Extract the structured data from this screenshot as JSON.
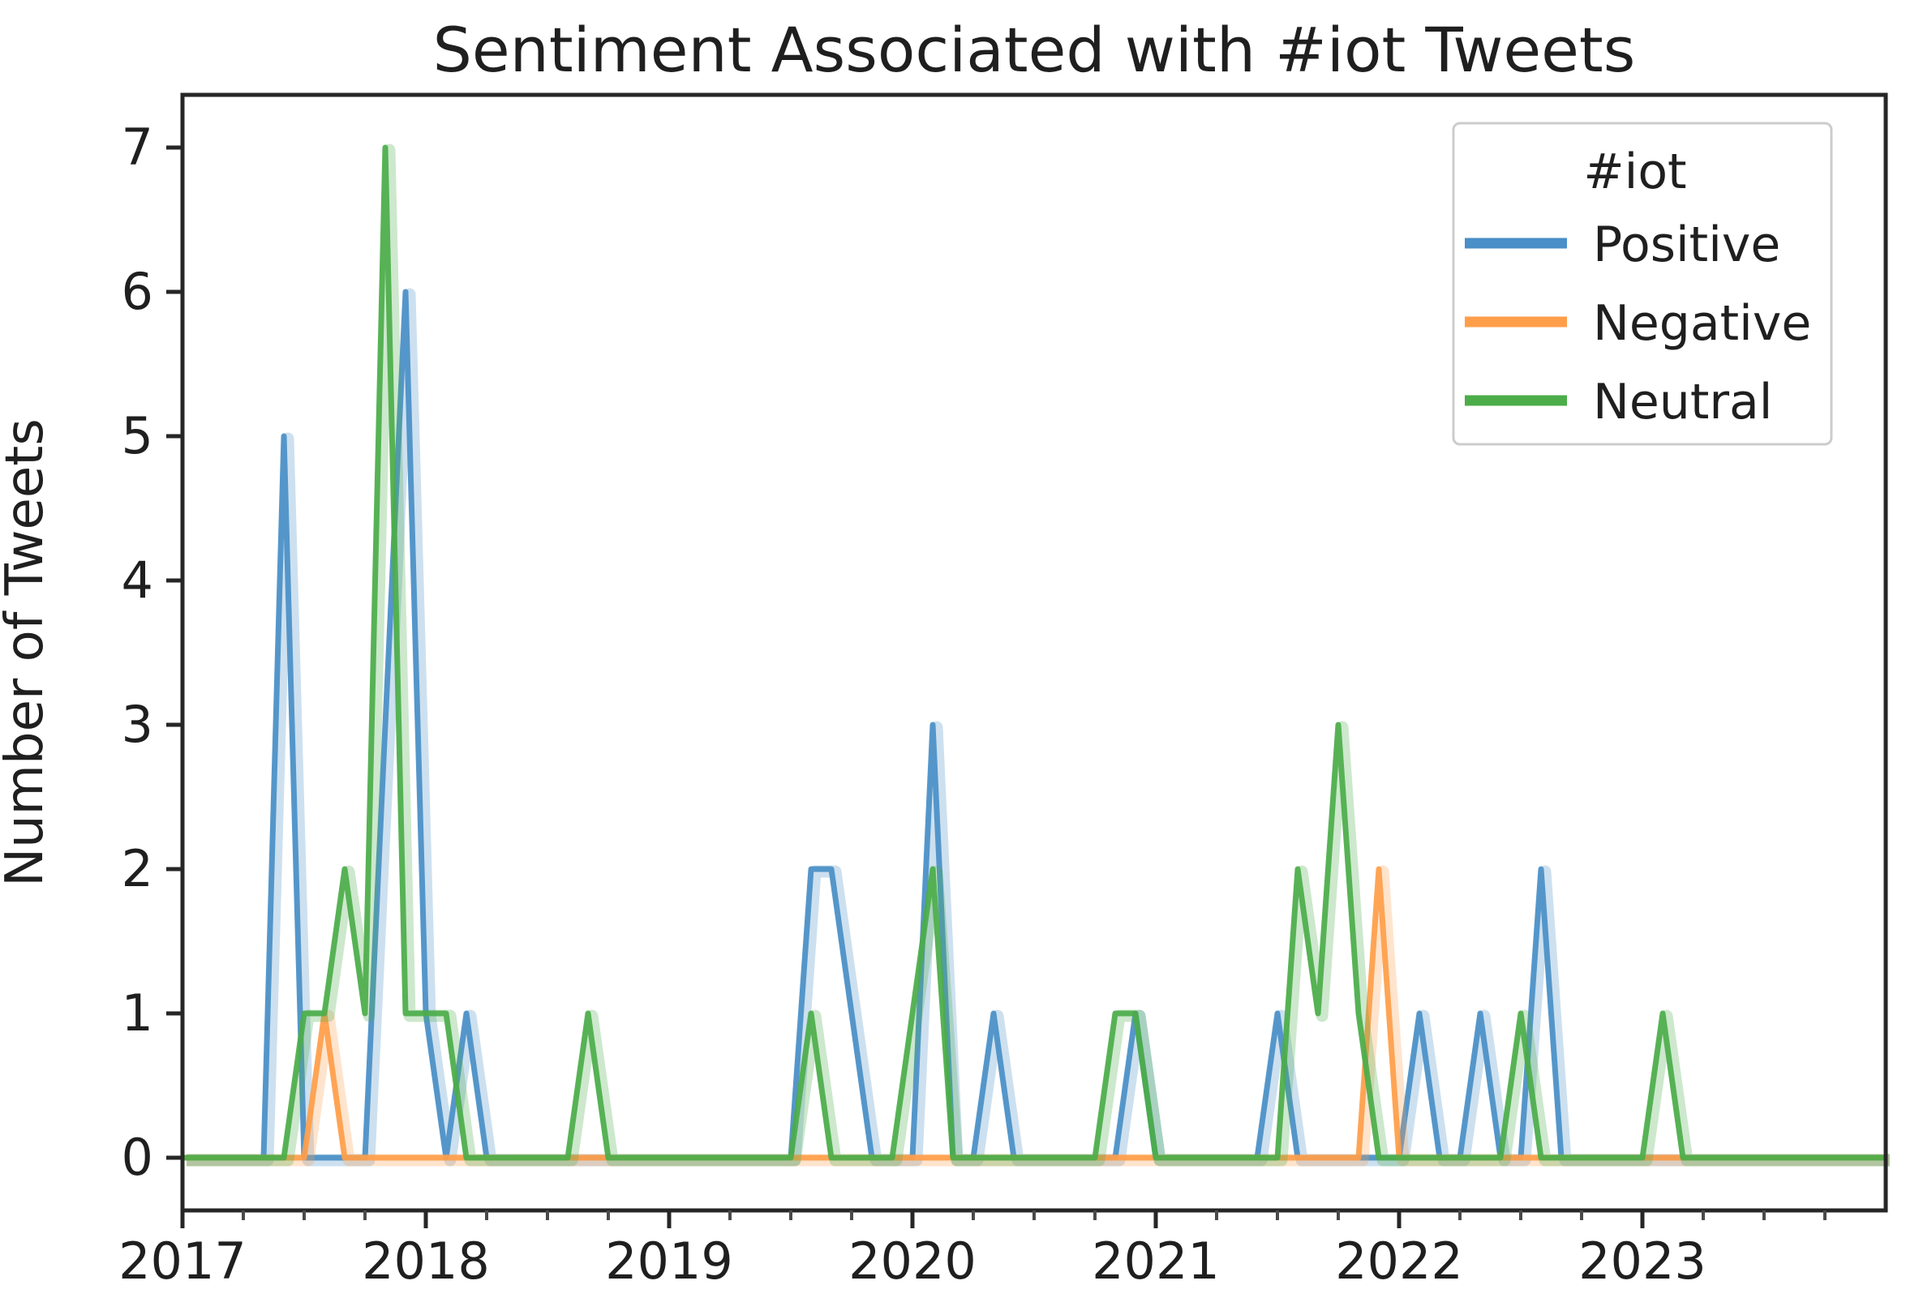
{
  "chart_data": {
    "type": "line",
    "title": "Sentiment Associated with #iot Tweets",
    "xlabel": "",
    "ylabel": "Number of Tweets",
    "x_start_month": "2017-01",
    "x_end_month": "2024-01",
    "points_per_series": 85,
    "x_tick_labels": [
      "2017",
      "2018",
      "2019",
      "2020",
      "2021",
      "2022",
      "2023"
    ],
    "x_minor_ticks_per_year": 3,
    "y_tick_labels": [
      "0",
      "1",
      "2",
      "3",
      "4",
      "5",
      "6",
      "7"
    ],
    "ylim": [
      -0.35,
      7.35
    ],
    "grid": false,
    "legend": {
      "title": "#iot",
      "position": "upper-right"
    },
    "series": [
      {
        "name": "Positive",
        "color": "#4a8fc7",
        "values": [
          0,
          0,
          0,
          0,
          0,
          5,
          0,
          0,
          0,
          0,
          3,
          6,
          1,
          0,
          1,
          0,
          0,
          0,
          0,
          0,
          0,
          0,
          0,
          0,
          0,
          0,
          0,
          0,
          0,
          0,
          0,
          2,
          2,
          1,
          0,
          0,
          0,
          3,
          0,
          0,
          1,
          0,
          0,
          0,
          0,
          0,
          0,
          1,
          0,
          0,
          0,
          0,
          0,
          0,
          1,
          0,
          0,
          0,
          0,
          0,
          0,
          1,
          0,
          0,
          1,
          0,
          0,
          2,
          0,
          0,
          0,
          0,
          0,
          0,
          0,
          0,
          0,
          0,
          0,
          0,
          0,
          0,
          0,
          0,
          0
        ]
      },
      {
        "name": "Negative",
        "color": "#ff9e4a",
        "values": [
          0,
          0,
          0,
          0,
          0,
          0,
          0,
          1,
          0,
          0,
          0,
          0,
          0,
          0,
          0,
          0,
          0,
          0,
          0,
          0,
          0,
          0,
          0,
          0,
          0,
          0,
          0,
          0,
          0,
          0,
          0,
          0,
          0,
          0,
          0,
          0,
          0,
          0,
          0,
          0,
          0,
          0,
          0,
          0,
          0,
          0,
          0,
          0,
          0,
          0,
          0,
          0,
          0,
          0,
          0,
          0,
          0,
          0,
          0,
          2,
          0,
          0,
          0,
          0,
          0,
          0,
          0,
          0,
          0,
          0,
          0,
          0,
          0,
          0,
          0,
          0,
          0,
          0,
          0,
          0,
          0,
          0,
          0,
          0,
          0
        ]
      },
      {
        "name": "Neutral",
        "color": "#4cad4a",
        "values": [
          0,
          0,
          0,
          0,
          0,
          0,
          1,
          1,
          2,
          1,
          7,
          1,
          1,
          1,
          0,
          0,
          0,
          0,
          0,
          0,
          1,
          0,
          0,
          0,
          0,
          0,
          0,
          0,
          0,
          0,
          0,
          1,
          0,
          0,
          0,
          0,
          1,
          2,
          0,
          0,
          0,
          0,
          0,
          0,
          0,
          0,
          1,
          1,
          0,
          0,
          0,
          0,
          0,
          0,
          0,
          2,
          1,
          3,
          1,
          0,
          0,
          0,
          0,
          0,
          0,
          0,
          1,
          0,
          0,
          0,
          0,
          0,
          0,
          1,
          0,
          0,
          0,
          0,
          0,
          0,
          0,
          0,
          0,
          0,
          0
        ]
      }
    ],
    "colors": {
      "axis_text": "#1f1f1f",
      "spine": "#262626",
      "legend_border": "#cccccc",
      "background": "#ffffff"
    }
  }
}
